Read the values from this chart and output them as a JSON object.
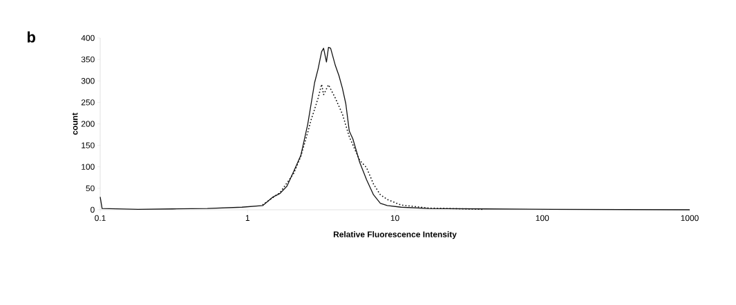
{
  "chart_data": {
    "type": "line",
    "xlabel": "Relative Fluorescence Intensity",
    "ylabel": "count",
    "annotations": [
      "b"
    ],
    "log": "x",
    "xlim": [
      0.1,
      1000
    ],
    "ylim": [
      0,
      400
    ],
    "xticks": [
      0.1,
      1,
      10,
      100,
      1000
    ],
    "yticks": [
      0,
      50,
      100,
      150,
      200,
      250,
      300,
      350,
      400
    ],
    "grid": false,
    "marker": "none",
    "series": [
      {
        "color": "#111111",
        "line_style": "solid",
        "x": [
          0.1,
          0.103,
          0.181,
          0.311,
          0.534,
          0.916,
          1.27,
          1.49,
          1.66,
          1.85,
          2.06,
          2.3,
          2.56,
          2.7,
          2.85,
          3.01,
          3.18,
          3.28,
          3.43,
          3.54,
          3.66,
          3.94,
          4.17,
          4.4,
          4.64,
          4.9,
          5.18,
          5.77,
          6.42,
          7.15,
          7.96,
          8.87,
          11.0,
          17.0,
          40.3,
          119,
          1000
        ],
        "values": [
          30,
          3,
          1,
          2,
          3,
          6,
          10,
          30,
          38,
          55,
          90,
          127,
          199,
          247,
          296,
          328,
          368,
          376,
          344,
          378,
          376,
          336,
          312,
          283,
          247,
          183,
          165,
          110,
          70,
          35,
          15,
          10,
          6,
          3,
          2,
          1,
          0
        ]
      },
      {
        "color": "#111111",
        "line_style": "dotted",
        "x": [
          1.27,
          1.66,
          2.06,
          2.3,
          2.56,
          2.7,
          2.85,
          3.01,
          3.18,
          3.28,
          3.54,
          3.94,
          4.4,
          4.9,
          5.77,
          6.42,
          7.15,
          7.96,
          8.87,
          11.0,
          17.0,
          40.3
        ],
        "values": [
          12,
          40,
          85,
          125,
          180,
          210,
          234,
          260,
          292,
          268,
          291,
          260,
          223,
          170,
          115,
          98,
          60,
          35,
          24,
          11,
          4,
          1
        ]
      }
    ]
  }
}
